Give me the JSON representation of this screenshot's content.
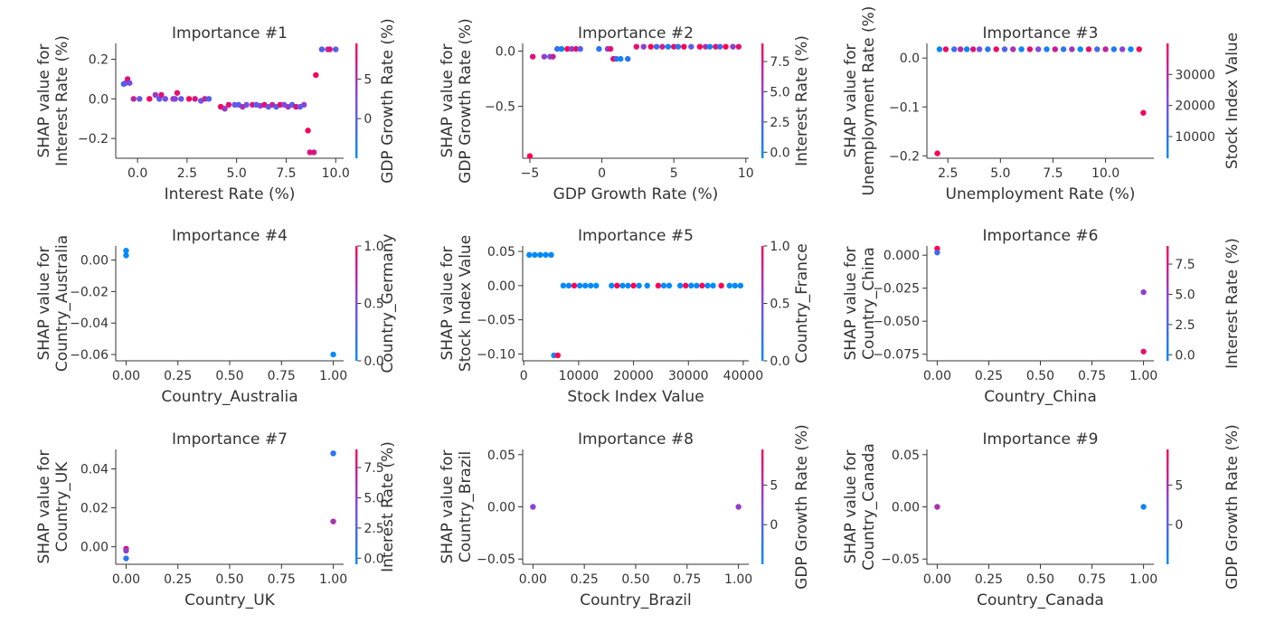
{
  "colormap": {
    "low": "#008afb",
    "mid": "#7a4ce6",
    "high": "#ff0052"
  },
  "chart_data": [
    {
      "type": "scatter",
      "title": "Importance #1",
      "xlabel": "Interest Rate (%)",
      "ylabel": [
        "SHAP value for",
        "Interest Rate (%)"
      ],
      "xlim": [
        -1.1,
        10.4
      ],
      "ylim": [
        -0.3,
        0.28
      ],
      "xticks": [
        0,
        2.5,
        5,
        7.5,
        10
      ],
      "xtick_labels": [
        "0.0",
        "2.5",
        "5.0",
        "7.5",
        "10.0"
      ],
      "yticks": [
        -0.2,
        0,
        0.2
      ],
      "ytick_labels": [
        "−0.2",
        "0.0",
        "0.2"
      ],
      "colorbar_label": "GDP Growth Rate (%)",
      "clim": [
        -5,
        9.5
      ],
      "cticks": [
        0,
        5
      ],
      "ctick_labels": [
        "0",
        "5"
      ],
      "points": [
        [
          -0.6,
          0.08,
          3
        ],
        [
          -0.5,
          0.1,
          8
        ],
        [
          -0.7,
          0.075,
          0
        ],
        [
          -0.4,
          0.08,
          2
        ],
        [
          -0.2,
          0.0,
          6
        ],
        [
          0.1,
          0.0,
          1
        ],
        [
          0.6,
          0.0,
          9
        ],
        [
          0.9,
          0.02,
          4
        ],
        [
          1.1,
          0.0,
          0
        ],
        [
          1.2,
          0.02,
          8
        ],
        [
          1.4,
          0.0,
          2
        ],
        [
          1.8,
          0.0,
          5
        ],
        [
          1.9,
          0.0,
          3
        ],
        [
          2.0,
          0.03,
          8
        ],
        [
          2.2,
          0.0,
          1
        ],
        [
          2.6,
          0.0,
          9
        ],
        [
          2.9,
          0.0,
          7
        ],
        [
          3.2,
          -0.01,
          2
        ],
        [
          3.4,
          0.0,
          6
        ],
        [
          3.6,
          0.0,
          0
        ],
        [
          4.2,
          -0.04,
          9
        ],
        [
          4.4,
          -0.05,
          4
        ],
        [
          4.6,
          -0.03,
          8
        ],
        [
          4.9,
          -0.03,
          1
        ],
        [
          5.1,
          -0.03,
          0
        ],
        [
          5.3,
          -0.04,
          5
        ],
        [
          5.5,
          -0.03,
          2
        ],
        [
          5.8,
          -0.03,
          7
        ],
        [
          6.0,
          -0.03,
          0
        ],
        [
          6.2,
          -0.035,
          3
        ],
        [
          6.4,
          -0.03,
          8
        ],
        [
          6.6,
          -0.04,
          1
        ],
        [
          6.8,
          -0.03,
          6
        ],
        [
          7.0,
          -0.04,
          0
        ],
        [
          7.2,
          -0.03,
          9
        ],
        [
          7.4,
          -0.03,
          2
        ],
        [
          7.6,
          -0.04,
          4
        ],
        [
          7.8,
          -0.03,
          0
        ],
        [
          8.0,
          -0.04,
          8
        ],
        [
          8.2,
          -0.04,
          1
        ],
        [
          8.4,
          -0.03,
          3
        ],
        [
          8.6,
          -0.16,
          9
        ],
        [
          8.7,
          -0.27,
          8
        ],
        [
          8.9,
          -0.27,
          7
        ],
        [
          9.0,
          0.12,
          9
        ],
        [
          9.3,
          0.25,
          0
        ],
        [
          9.6,
          0.25,
          3
        ],
        [
          9.7,
          0.25,
          8
        ],
        [
          10.0,
          0.25,
          0
        ]
      ]
    },
    {
      "type": "scatter",
      "title": "Importance #2",
      "xlabel": "GDP Growth Rate (%)",
      "ylabel": [
        "SHAP value for",
        "GDP Growth Rate (%)"
      ],
      "xlim": [
        -5.5,
        10.2
      ],
      "ylim": [
        -0.97,
        0.07
      ],
      "xticks": [
        -5,
        0,
        5,
        10
      ],
      "xtick_labels": [
        "−5",
        "0",
        "5",
        "10"
      ],
      "yticks": [
        -0.5,
        0
      ],
      "ytick_labels": [
        "−0.5",
        "0.0"
      ],
      "colorbar_label": "Interest Rate (%)",
      "clim": [
        -0.5,
        9
      ],
      "cticks": [
        0,
        2.5,
        5,
        7.5
      ],
      "ctick_labels": [
        "0.0",
        "2.5",
        "5.0",
        "7.5"
      ],
      "points": [
        [
          -5.0,
          -0.95,
          9
        ],
        [
          -4.8,
          -0.05,
          8
        ],
        [
          -4.0,
          -0.05,
          5
        ],
        [
          -3.6,
          -0.05,
          4
        ],
        [
          -3.4,
          -0.05,
          7
        ],
        [
          -3.1,
          0.02,
          2
        ],
        [
          -2.8,
          0.02,
          0
        ],
        [
          -2.4,
          0.02,
          9
        ],
        [
          -2.1,
          0.02,
          5
        ],
        [
          -1.8,
          0.02,
          8
        ],
        [
          -1.5,
          0.02,
          3
        ],
        [
          -0.2,
          0.02,
          1
        ],
        [
          0.4,
          0.02,
          5
        ],
        [
          0.6,
          0.02,
          8
        ],
        [
          0.8,
          -0.07,
          9
        ],
        [
          1.0,
          -0.07,
          2
        ],
        [
          1.3,
          -0.07,
          0
        ],
        [
          1.8,
          -0.07,
          1
        ],
        [
          2.4,
          0.04,
          8
        ],
        [
          2.9,
          0.04,
          5
        ],
        [
          3.4,
          0.04,
          9
        ],
        [
          3.8,
          0.04,
          2
        ],
        [
          4.2,
          0.04,
          7
        ],
        [
          4.6,
          0.04,
          0
        ],
        [
          5.0,
          0.04,
          8
        ],
        [
          5.3,
          0.04,
          1
        ],
        [
          5.7,
          0.04,
          9
        ],
        [
          6.2,
          0.04,
          3
        ],
        [
          6.8,
          0.04,
          9
        ],
        [
          7.2,
          0.04,
          6
        ],
        [
          7.5,
          0.04,
          0
        ],
        [
          7.9,
          0.04,
          8
        ],
        [
          8.2,
          0.04,
          2
        ],
        [
          8.6,
          0.04,
          9
        ],
        [
          9.1,
          0.04,
          5
        ],
        [
          9.5,
          0.04,
          8
        ]
      ]
    },
    {
      "type": "scatter",
      "title": "Importance #3",
      "xlabel": "Unemployment Rate (%)",
      "ylabel": [
        "SHAP value for",
        "Unemployment Rate (%)"
      ],
      "xlim": [
        1.5,
        12.3
      ],
      "ylim": [
        -0.205,
        0.03
      ],
      "xticks": [
        2.5,
        5,
        7.5,
        10
      ],
      "xtick_labels": [
        "2.5",
        "5.0",
        "7.5",
        "10.0"
      ],
      "yticks": [
        -0.2,
        -0.1,
        0
      ],
      "ytick_labels": [
        "−0.2",
        "−0.1",
        "0.0"
      ],
      "colorbar_label": "Stock Index Value",
      "clim": [
        3000,
        40000
      ],
      "cticks": [
        10000,
        20000,
        30000
      ],
      "ctick_labels": [
        "10000",
        "20000",
        "30000"
      ],
      "points": [
        [
          2.0,
          -0.195,
          39000
        ],
        [
          2.1,
          0.018,
          3000
        ],
        [
          2.4,
          0.018,
          38000
        ],
        [
          2.8,
          0.018,
          12000
        ],
        [
          3.1,
          0.018,
          30000
        ],
        [
          3.4,
          0.018,
          5000
        ],
        [
          3.7,
          0.018,
          35000
        ],
        [
          4.0,
          0.018,
          20000
        ],
        [
          4.4,
          0.018,
          8000
        ],
        [
          4.8,
          0.018,
          38000
        ],
        [
          5.2,
          0.018,
          15000
        ],
        [
          5.6,
          0.018,
          28000
        ],
        [
          6.0,
          0.018,
          4000
        ],
        [
          6.4,
          0.018,
          36000
        ],
        [
          6.8,
          0.018,
          22000
        ],
        [
          7.2,
          0.018,
          6000
        ],
        [
          7.6,
          0.018,
          33000
        ],
        [
          8.0,
          0.018,
          10000
        ],
        [
          8.4,
          0.018,
          26000
        ],
        [
          8.8,
          0.018,
          3000
        ],
        [
          9.2,
          0.018,
          37000
        ],
        [
          9.6,
          0.018,
          14000
        ],
        [
          10.0,
          0.018,
          31000
        ],
        [
          10.4,
          0.018,
          7000
        ],
        [
          10.8,
          0.018,
          24000
        ],
        [
          11.2,
          0.018,
          2000
        ],
        [
          11.6,
          0.018,
          39000
        ],
        [
          11.8,
          -0.112,
          38000
        ]
      ]
    },
    {
      "type": "scatter",
      "title": "Importance #4",
      "xlabel": "Country_Australia",
      "ylabel": [
        "SHAP value for",
        "Country_Australia"
      ],
      "xlim": [
        -0.05,
        1.05
      ],
      "ylim": [
        -0.064,
        0.009
      ],
      "xticks": [
        0,
        0.25,
        0.5,
        0.75,
        1
      ],
      "xtick_labels": [
        "0.00",
        "0.25",
        "0.50",
        "0.75",
        "1.00"
      ],
      "yticks": [
        -0.06,
        -0.04,
        -0.02,
        0
      ],
      "ytick_labels": [
        "−0.06",
        "−0.04",
        "−0.02",
        "0.00"
      ],
      "colorbar_label": "Country_Germany",
      "clim": [
        0,
        1
      ],
      "cticks": [
        0,
        0.5,
        1
      ],
      "ctick_labels": [
        "0.0",
        "0.5",
        "1.0"
      ],
      "points": [
        [
          0,
          0.006,
          0
        ],
        [
          0,
          0.003,
          0
        ],
        [
          1,
          -0.06,
          0
        ]
      ]
    },
    {
      "type": "scatter",
      "title": "Importance #5",
      "xlabel": "Stock Index Value",
      "ylabel": [
        "SHAP value for",
        "Stock Index Value"
      ],
      "xlim": [
        -200,
        41000
      ],
      "ylim": [
        -0.11,
        0.058
      ],
      "xticks": [
        0,
        10000,
        20000,
        30000,
        40000
      ],
      "xtick_labels": [
        "0",
        "10000",
        "20000",
        "30000",
        "40000"
      ],
      "yticks": [
        -0.1,
        -0.05,
        0,
        0.05
      ],
      "ytick_labels": [
        "−0.10",
        "−0.05",
        "0.00",
        "0.05"
      ],
      "colorbar_label": "Country_France",
      "clim": [
        0,
        1
      ],
      "cticks": [
        0,
        0.5,
        1
      ],
      "ctick_labels": [
        "0.0",
        "0.5",
        "1.0"
      ],
      "points": [
        [
          1000,
          0.045,
          0
        ],
        [
          2000,
          0.045,
          0
        ],
        [
          3000,
          0.045,
          0
        ],
        [
          4000,
          0.045,
          0
        ],
        [
          5000,
          0.045,
          0
        ],
        [
          5500,
          -0.102,
          0
        ],
        [
          6200,
          -0.102,
          1
        ],
        [
          7200,
          0,
          0
        ],
        [
          8200,
          0,
          0
        ],
        [
          9200,
          0,
          1
        ],
        [
          10200,
          0,
          0
        ],
        [
          11200,
          0,
          0
        ],
        [
          12200,
          0,
          0
        ],
        [
          13200,
          0,
          0
        ],
        [
          16000,
          0,
          0
        ],
        [
          17000,
          0,
          1
        ],
        [
          18000,
          0,
          0
        ],
        [
          19000,
          0,
          0
        ],
        [
          20000,
          0,
          1
        ],
        [
          21000,
          0,
          0
        ],
        [
          22500,
          0,
          0
        ],
        [
          24500,
          0,
          1
        ],
        [
          25500,
          0,
          0
        ],
        [
          26500,
          0,
          0
        ],
        [
          28500,
          0,
          0
        ],
        [
          29500,
          0,
          1
        ],
        [
          30500,
          0,
          0
        ],
        [
          31500,
          0,
          0
        ],
        [
          32500,
          0,
          1
        ],
        [
          33500,
          0,
          0
        ],
        [
          34500,
          0,
          0
        ],
        [
          36000,
          0,
          1
        ],
        [
          37500,
          0,
          0
        ],
        [
          38500,
          0,
          0
        ],
        [
          39500,
          0,
          0
        ]
      ]
    },
    {
      "type": "scatter",
      "title": "Importance #6",
      "xlabel": "Country_China",
      "ylabel": [
        "SHAP value for",
        "Country_China"
      ],
      "xlim": [
        -0.05,
        1.05
      ],
      "ylim": [
        -0.08,
        0.007
      ],
      "xticks": [
        0,
        0.25,
        0.5,
        0.75,
        1
      ],
      "xtick_labels": [
        "0.00",
        "0.25",
        "0.50",
        "0.75",
        "1.00"
      ],
      "yticks": [
        -0.075,
        -0.05,
        -0.025,
        0
      ],
      "ytick_labels": [
        "−0.075",
        "−0.050",
        "−0.025",
        "0.000"
      ],
      "colorbar_label": "Interest Rate (%)",
      "clim": [
        -0.5,
        9
      ],
      "cticks": [
        0,
        2.5,
        5,
        7.5
      ],
      "ctick_labels": [
        "0.0",
        "2.5",
        "5.0",
        "7.5"
      ],
      "points": [
        [
          0,
          0.005,
          9
        ],
        [
          0,
          0.002,
          2
        ],
        [
          1,
          -0.028,
          5
        ],
        [
          1,
          -0.073,
          8
        ]
      ]
    },
    {
      "type": "scatter",
      "title": "Importance #7",
      "xlabel": "Country_UK",
      "ylabel": [
        "SHAP value for",
        "Country_UK"
      ],
      "xlim": [
        -0.05,
        1.05
      ],
      "ylim": [
        -0.009,
        0.05
      ],
      "xticks": [
        0,
        0.25,
        0.5,
        0.75,
        1
      ],
      "xtick_labels": [
        "0.00",
        "0.25",
        "0.50",
        "0.75",
        "1.00"
      ],
      "yticks": [
        0,
        0.02,
        0.04
      ],
      "ytick_labels": [
        "0.00",
        "0.02",
        "0.04"
      ],
      "colorbar_label": "Interest Rate (%)",
      "clim": [
        -0.5,
        9
      ],
      "cticks": [
        0,
        2.5,
        5,
        7.5
      ],
      "ctick_labels": [
        "0.0",
        "2.5",
        "5.0",
        "7.5"
      ],
      "points": [
        [
          0,
          -0.001,
          8
        ],
        [
          0,
          -0.002,
          5
        ],
        [
          0,
          -0.006,
          1
        ],
        [
          1,
          0.048,
          1
        ],
        [
          1,
          0.013,
          6
        ]
      ]
    },
    {
      "type": "scatter",
      "title": "Importance #8",
      "xlabel": "Country_Brazil",
      "ylabel": [
        "SHAP value for",
        "Country_Brazil"
      ],
      "xlim": [
        -0.05,
        1.05
      ],
      "ylim": [
        -0.055,
        0.055
      ],
      "xticks": [
        0,
        0.25,
        0.5,
        0.75,
        1
      ],
      "xtick_labels": [
        "0.00",
        "0.25",
        "0.50",
        "0.75",
        "1.00"
      ],
      "yticks": [
        -0.05,
        0,
        0.05
      ],
      "ytick_labels": [
        "−0.05",
        "0.00",
        "0.05"
      ],
      "colorbar_label": "GDP Growth Rate (%)",
      "clim": [
        -5,
        9.5
      ],
      "cticks": [
        0,
        5
      ],
      "ctick_labels": [
        "0",
        "5"
      ],
      "points": [
        [
          0,
          0,
          3
        ],
        [
          1,
          0,
          4
        ]
      ]
    },
    {
      "type": "scatter",
      "title": "Importance #9",
      "xlabel": "Country_Canada",
      "ylabel": [
        "SHAP value for",
        "Country_Canada"
      ],
      "xlim": [
        -0.05,
        1.05
      ],
      "ylim": [
        -0.055,
        0.055
      ],
      "xticks": [
        0,
        0.25,
        0.5,
        0.75,
        1
      ],
      "xtick_labels": [
        "0.00",
        "0.25",
        "0.50",
        "0.75",
        "1.00"
      ],
      "yticks": [
        -0.05,
        0,
        0.05
      ],
      "ytick_labels": [
        "−0.05",
        "0.00",
        "0.05"
      ],
      "colorbar_label": "GDP Growth Rate (%)",
      "clim": [
        -5,
        9.5
      ],
      "cticks": [
        0,
        5
      ],
      "ctick_labels": [
        "0",
        "5"
      ],
      "points": [
        [
          0,
          0,
          5
        ],
        [
          1,
          0,
          -4
        ]
      ]
    }
  ]
}
